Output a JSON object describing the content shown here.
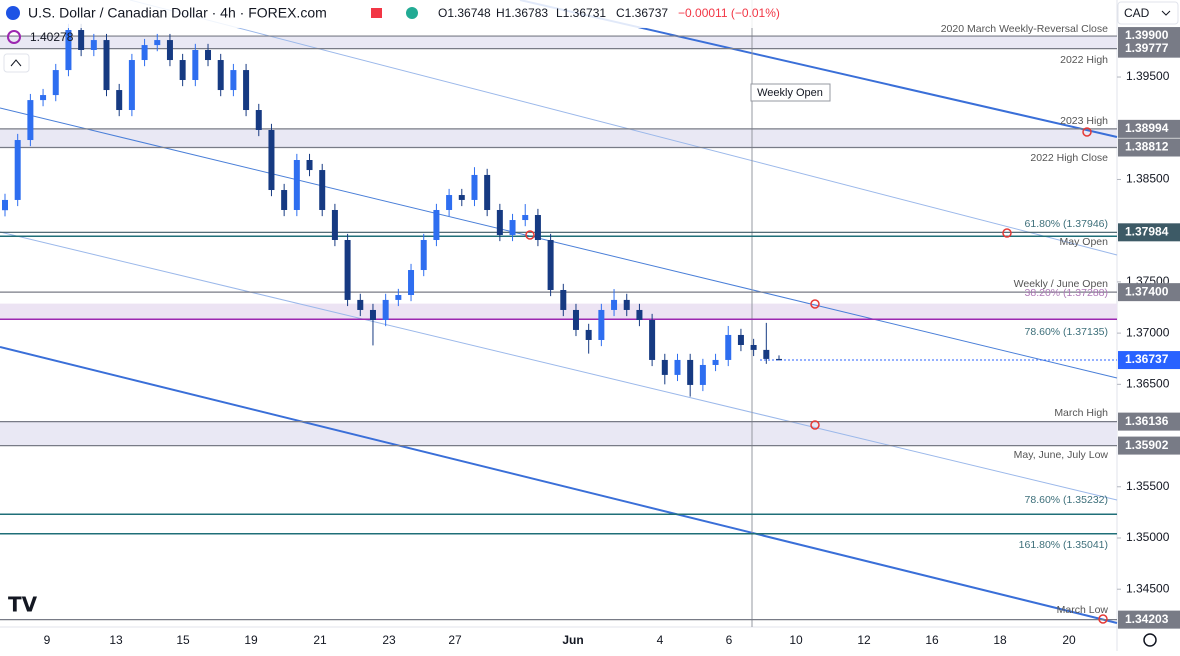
{
  "chart_data": {
    "type": "candlestick",
    "title": "U.S. Dollar / Canadian Dollar · 4h · FOREX.com",
    "ohlc_header": [
      "O1.36748",
      "H1.36783",
      "L1.36731",
      "C1.36737",
      "−0.00011 (−0.01%)"
    ],
    "indicator_value": "1.40278",
    "currency": "CAD",
    "up_color": "#2e6ef0",
    "down_color": "#163a82",
    "ylim": [
      1.34131,
      1.40252
    ],
    "yticks": [
      {
        "value": 1.395,
        "label": "1.39500"
      },
      {
        "value": 1.385,
        "label": "1.38500"
      },
      {
        "value": 1.375,
        "label": "1.37500"
      },
      {
        "value": 1.37,
        "label": "1.37000"
      },
      {
        "value": 1.365,
        "label": "1.36500"
      },
      {
        "value": 1.355,
        "label": "1.35500"
      },
      {
        "value": 1.35,
        "label": "1.35000"
      },
      {
        "value": 1.345,
        "label": "1.34500"
      }
    ],
    "xtick_labels": [
      "9",
      "13",
      "15",
      "19",
      "21",
      "23",
      "27",
      "Jun",
      "4",
      "6",
      "10",
      "12",
      "16",
      "18",
      "20"
    ],
    "candles": {
      "open": [
        1.382,
        1.383,
        1.38885,
        1.39275,
        1.39324,
        1.39568,
        1.39959,
        1.39764,
        1.39861,
        1.39373,
        1.39178,
        1.39666,
        1.39812,
        1.39861,
        1.39666,
        1.39471,
        1.39764,
        1.39666,
        1.39373,
        1.39568,
        1.39178,
        1.38983,
        1.38397,
        1.38202,
        1.3869,
        1.38592,
        1.38202,
        1.37909,
        1.37324,
        1.37226,
        1.37128,
        1.37324,
        1.37372,
        1.37616,
        1.37909,
        1.38202,
        1.38348,
        1.383,
        1.38544,
        1.38202,
        1.37958,
        1.38104,
        1.38153,
        1.37909,
        1.37421,
        1.37226,
        1.37031,
        1.36933,
        1.37226,
        1.37324,
        1.37226,
        1.37128,
        1.36738,
        1.36592,
        1.36738,
        1.36494,
        1.36689,
        1.36738,
        1.36982,
        1.36884,
        1.36836,
        1.36748
      ],
      "high": [
        1.3836,
        1.38945,
        1.39335,
        1.39384,
        1.39628,
        1.40019,
        1.40019,
        1.39921,
        1.39921,
        1.39433,
        1.39726,
        1.39872,
        1.39921,
        1.39921,
        1.39726,
        1.39824,
        1.39824,
        1.39726,
        1.39628,
        1.39628,
        1.39238,
        1.39043,
        1.38457,
        1.3875,
        1.3875,
        1.38652,
        1.38262,
        1.37969,
        1.37384,
        1.37286,
        1.37384,
        1.37432,
        1.37676,
        1.37969,
        1.38262,
        1.38408,
        1.38408,
        1.3862,
        1.38604,
        1.38262,
        1.38164,
        1.3826,
        1.38213,
        1.37969,
        1.37481,
        1.37286,
        1.37091,
        1.37286,
        1.3743,
        1.37384,
        1.37286,
        1.37188,
        1.36798,
        1.36798,
        1.36798,
        1.36749,
        1.36798,
        1.3707,
        1.37042,
        1.36944,
        1.371,
        1.36783
      ],
      "low": [
        1.3814,
        1.3824,
        1.38825,
        1.39215,
        1.39264,
        1.39508,
        1.39704,
        1.39704,
        1.39313,
        1.39118,
        1.39118,
        1.39606,
        1.39752,
        1.39606,
        1.39411,
        1.39411,
        1.39606,
        1.39313,
        1.39313,
        1.39118,
        1.38923,
        1.38337,
        1.38142,
        1.38142,
        1.38532,
        1.38142,
        1.37849,
        1.37264,
        1.37166,
        1.3688,
        1.37068,
        1.37264,
        1.37312,
        1.37556,
        1.37849,
        1.38142,
        1.3824,
        1.3824,
        1.38142,
        1.37898,
        1.37898,
        1.38044,
        1.37849,
        1.37361,
        1.37166,
        1.36971,
        1.368,
        1.36873,
        1.37166,
        1.37166,
        1.37068,
        1.36678,
        1.365,
        1.36532,
        1.3638,
        1.36434,
        1.36629,
        1.36678,
        1.36824,
        1.36776,
        1.367,
        1.36731
      ],
      "close": [
        1.383,
        1.38885,
        1.39275,
        1.39324,
        1.39568,
        1.39959,
        1.39764,
        1.39861,
        1.39373,
        1.39178,
        1.39666,
        1.39812,
        1.39861,
        1.39666,
        1.39471,
        1.39764,
        1.39666,
        1.39373,
        1.39568,
        1.39178,
        1.38983,
        1.38397,
        1.38202,
        1.3869,
        1.38592,
        1.38202,
        1.37909,
        1.37324,
        1.37226,
        1.37128,
        1.37324,
        1.37372,
        1.37616,
        1.37909,
        1.38202,
        1.38348,
        1.383,
        1.38544,
        1.38202,
        1.37958,
        1.38104,
        1.38153,
        1.37909,
        1.37421,
        1.37226,
        1.37031,
        1.36933,
        1.37226,
        1.37324,
        1.37226,
        1.37128,
        1.36738,
        1.36592,
        1.36738,
        1.36494,
        1.36689,
        1.36738,
        1.36982,
        1.36884,
        1.36836,
        1.36748,
        1.36737
      ]
    },
    "zones": [
      {
        "top": 1.399,
        "bottom": 1.39777
      },
      {
        "top": 1.38994,
        "bottom": 1.38812
      },
      {
        "top": 1.37288,
        "bottom": 1.37135
      },
      {
        "top": 1.36136,
        "bottom": 1.35902
      }
    ],
    "levels": [
      {
        "value": 1.399,
        "label": "1.39900",
        "color": "#787b86"
      },
      {
        "value": 1.39777,
        "label": "1.39777",
        "color": "#787b86"
      },
      {
        "value": 1.38994,
        "label": "1.38994",
        "color": "#787b86"
      },
      {
        "value": 1.38812,
        "label": "1.38812",
        "color": "#787b86"
      },
      {
        "value": 1.37984,
        "label": "1.37984",
        "color": "#3d5a66"
      },
      {
        "value": 1.374,
        "label": "1.37400",
        "color": "#787b86"
      },
      {
        "value": 1.36737,
        "label": "1.36737",
        "color": "#2962ff"
      },
      {
        "value": 1.36136,
        "label": "1.36136",
        "color": "#787b86"
      },
      {
        "value": 1.35902,
        "label": "1.35902",
        "color": "#787b86"
      },
      {
        "value": 1.34203,
        "label": "1.34203",
        "color": "#787b86"
      }
    ],
    "fib_lines": [
      {
        "value": 1.37946,
        "color": "#1f6f78"
      },
      {
        "value": 1.37135,
        "color": "#9c27b0"
      },
      {
        "value": 1.35232,
        "color": "#1f6f78"
      },
      {
        "value": 1.35041,
        "color": "#1f6f78"
      }
    ],
    "annotations": [
      "2020 March Weekly-Reversal Close",
      "2022 High",
      "2023 High",
      "2022 High Close",
      "61.80% (1.37946)",
      "May Open",
      "Weekly / June Open",
      "38.20% (1.37288)",
      "78.60% (1.37135)",
      "March High",
      "May, June, July Low",
      "78.60% (1.35232)",
      "161.80% (1.35041)",
      "March Low"
    ],
    "weekly_open_label": "Weekly Open"
  }
}
